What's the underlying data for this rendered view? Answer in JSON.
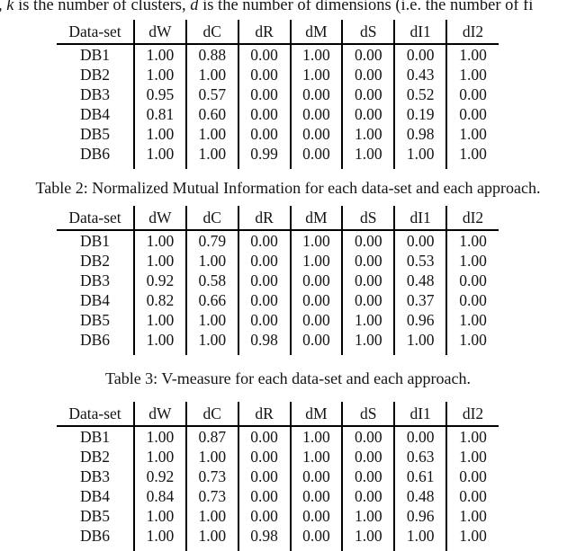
{
  "top_text": {
    "segments": [
      {
        "text": ", "
      },
      {
        "text": "k"
      },
      {
        "text": " is the number of clusters, "
      },
      {
        "text": "d"
      },
      {
        "text": " is the number of dimensions (i.e. the number of fi"
      }
    ]
  },
  "tables": [
    {
      "columns": [
        "Data-set",
        "dW",
        "dC",
        "dR",
        "dM",
        "dS",
        "dI1",
        "dI2"
      ],
      "rows": [
        [
          "DB1",
          "1.00",
          "0.88",
          "0.00",
          "1.00",
          "0.00",
          "0.00",
          "1.00"
        ],
        [
          "DB2",
          "1.00",
          "1.00",
          "0.00",
          "1.00",
          "0.00",
          "0.43",
          "1.00"
        ],
        [
          "DB3",
          "0.95",
          "0.57",
          "0.00",
          "0.00",
          "0.00",
          "0.52",
          "0.00"
        ],
        [
          "DB4",
          "0.81",
          "0.60",
          "0.00",
          "0.00",
          "0.00",
          "0.19",
          "0.00"
        ],
        [
          "DB5",
          "1.00",
          "1.00",
          "0.00",
          "0.00",
          "1.00",
          "0.98",
          "1.00"
        ],
        [
          "DB6",
          "1.00",
          "1.00",
          "0.99",
          "0.00",
          "1.00",
          "1.00",
          "1.00"
        ]
      ],
      "caption_below": "Table 2: Normalized Mutual Information for each data-set and each approach."
    },
    {
      "columns": [
        "Data-set",
        "dW",
        "dC",
        "dR",
        "dM",
        "dS",
        "dI1",
        "dI2"
      ],
      "rows": [
        [
          "DB1",
          "1.00",
          "0.79",
          "0.00",
          "1.00",
          "0.00",
          "0.00",
          "1.00"
        ],
        [
          "DB2",
          "1.00",
          "1.00",
          "0.00",
          "1.00",
          "0.00",
          "0.53",
          "1.00"
        ],
        [
          "DB3",
          "0.92",
          "0.58",
          "0.00",
          "0.00",
          "0.00",
          "0.48",
          "0.00"
        ],
        [
          "DB4",
          "0.82",
          "0.66",
          "0.00",
          "0.00",
          "0.00",
          "0.37",
          "0.00"
        ],
        [
          "DB5",
          "1.00",
          "1.00",
          "0.00",
          "0.00",
          "1.00",
          "0.96",
          "1.00"
        ],
        [
          "DB6",
          "1.00",
          "1.00",
          "0.98",
          "0.00",
          "1.00",
          "1.00",
          "1.00"
        ]
      ],
      "caption_below": "Table 3: V-measure for each data-set and each approach."
    },
    {
      "columns": [
        "Data-set",
        "dW",
        "dC",
        "dR",
        "dM",
        "dS",
        "dI1",
        "dI2"
      ],
      "rows": [
        [
          "DB1",
          "1.00",
          "0.87",
          "0.00",
          "1.00",
          "0.00",
          "0.00",
          "1.00"
        ],
        [
          "DB2",
          "1.00",
          "1.00",
          "0.00",
          "1.00",
          "0.00",
          "0.63",
          "1.00"
        ],
        [
          "DB3",
          "0.92",
          "0.73",
          "0.00",
          "0.00",
          "0.00",
          "0.61",
          "0.00"
        ],
        [
          "DB4",
          "0.84",
          "0.73",
          "0.00",
          "0.00",
          "0.00",
          "0.48",
          "0.00"
        ],
        [
          "DB5",
          "1.00",
          "1.00",
          "0.00",
          "0.00",
          "1.00",
          "0.96",
          "1.00"
        ],
        [
          "DB6",
          "1.00",
          "1.00",
          "0.98",
          "0.00",
          "1.00",
          "1.00",
          "1.00"
        ]
      ]
    }
  ],
  "colors": {
    "text": "#141414",
    "rule": "#000000",
    "background": "#ffffff"
  }
}
